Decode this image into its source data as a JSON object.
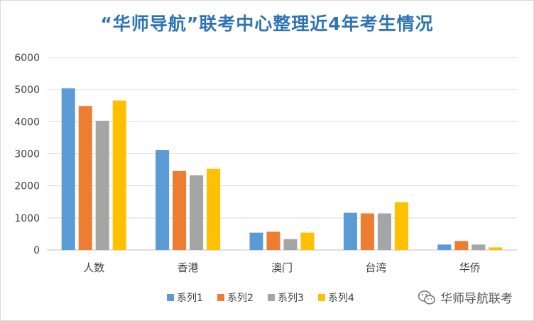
{
  "chart_data": {
    "type": "bar",
    "title": "“华师导航”联考中心整理近4年考生情况",
    "categories": [
      "人数",
      "香港",
      "澳门",
      "台湾",
      "华侨"
    ],
    "series": [
      {
        "name": "系列1",
        "color": "#5b9bd5",
        "values": [
          5040,
          3120,
          540,
          1160,
          170
        ]
      },
      {
        "name": "系列2",
        "color": "#ed7d31",
        "values": [
          4490,
          2460,
          570,
          1140,
          280
        ]
      },
      {
        "name": "系列3",
        "color": "#a5a5a5",
        "values": [
          4030,
          2330,
          340,
          1140,
          170
        ]
      },
      {
        "name": "系列4",
        "color": "#ffc000",
        "values": [
          4660,
          2530,
          540,
          1490,
          80
        ]
      }
    ],
    "ylim": [
      0,
      6000
    ],
    "yticks": [
      "0",
      "1000",
      "2000",
      "3000",
      "4000",
      "5000",
      "6000"
    ],
    "grid": true,
    "legend_position": "bottom"
  },
  "watermark": {
    "text": "华师导航联考",
    "icon": "wechat-icon"
  }
}
